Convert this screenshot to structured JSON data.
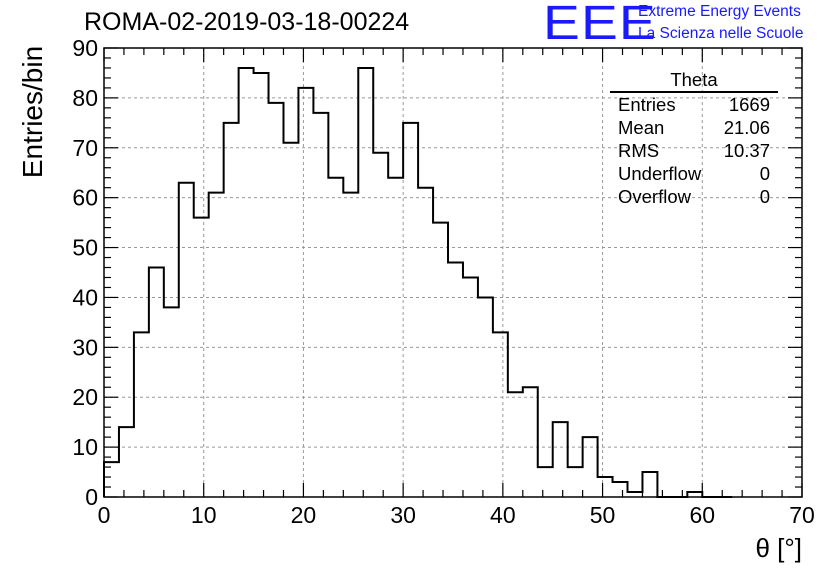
{
  "header": {
    "title": "ROMA-02-2019-03-18-00224",
    "logo_mark": "EEE",
    "logo_line1": "Extreme Energy Events",
    "logo_line2": "La Scienza nelle Scuole"
  },
  "colors": {
    "logo": "#1a1aff",
    "line": "#000000",
    "grid": "#999999"
  },
  "stats": {
    "title": "Theta",
    "rows": [
      {
        "label": "Entries",
        "value": "1669"
      },
      {
        "label": "Mean",
        "value": "21.06"
      },
      {
        "label": "RMS",
        "value": "10.37"
      },
      {
        "label": "Underflow",
        "value": "0"
      },
      {
        "label": "Overflow",
        "value": "0"
      }
    ]
  },
  "chart_data": {
    "type": "histogram",
    "title": "ROMA-02-2019-03-18-00224",
    "xlabel": "θ [°]",
    "ylabel": "Entries/bin",
    "xlim": [
      0,
      70
    ],
    "ylim": [
      0,
      90
    ],
    "grid": true,
    "bin_width": 1.5,
    "bin_edges_start": 0,
    "values": [
      7,
      14,
      33,
      46,
      38,
      63,
      56,
      61,
      75,
      86,
      85,
      79,
      71,
      82,
      77,
      64,
      61,
      86,
      69,
      64,
      75,
      62,
      55,
      47,
      44,
      40,
      33,
      21,
      22,
      6,
      15,
      6,
      12,
      4,
      3,
      1,
      5,
      0,
      0,
      1,
      0,
      0
    ],
    "xticks": [
      0,
      10,
      20,
      30,
      40,
      50,
      60,
      70
    ],
    "yticks": [
      0,
      10,
      20,
      30,
      40,
      50,
      60,
      70,
      80,
      90
    ],
    "stats_box_position": "top-right"
  }
}
